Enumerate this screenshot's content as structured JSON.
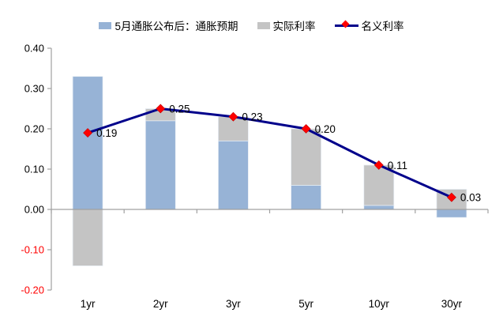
{
  "chart_data": {
    "type": "bar",
    "subtype": "stacked-bar-with-line",
    "title": "",
    "xlabel": "",
    "ylabel": "",
    "categories": [
      "1yr",
      "2yr",
      "3yr",
      "5yr",
      "10yr",
      "30yr"
    ],
    "series": [
      {
        "name": "5月通胀公布后：通胀预期",
        "type": "bar",
        "color": "#97b3d6",
        "values": [
          0.33,
          0.22,
          0.17,
          0.06,
          0.01,
          -0.02
        ]
      },
      {
        "name": "实际利率",
        "type": "bar",
        "color": "#c4c4c4",
        "values": [
          -0.14,
          0.03,
          0.06,
          0.14,
          0.1,
          0.05
        ]
      },
      {
        "name": "名义利率",
        "type": "line",
        "color": "#00008B",
        "marker": "diamond",
        "marker_color": "#FF0000",
        "values": [
          0.19,
          0.25,
          0.23,
          0.2,
          0.11,
          0.03
        ],
        "point_labels": [
          "0.19",
          "0.25",
          "0.23",
          "0.20",
          "0.11",
          "0.03"
        ]
      }
    ],
    "ylim": [
      -0.2,
      0.4
    ],
    "ytick_step": 0.1,
    "ytick_labels": [
      "0.40",
      "0.30",
      "0.20",
      "0.10",
      "0.00",
      "-0.10",
      "-0.20"
    ],
    "ytick_negative_color": "#FF0000",
    "axis_color": "#a0a0a0",
    "text_color": "#000000",
    "grid": false,
    "legend_position": "top"
  }
}
